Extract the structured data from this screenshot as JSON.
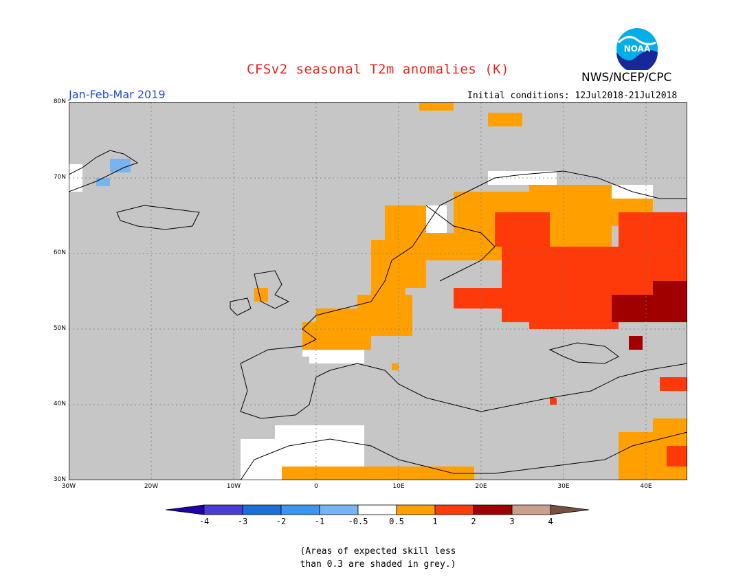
{
  "title": "CFSv2 seasonal T2m anomalies (K)",
  "agency": "NWS/NCEP/CPC",
  "period": "Jan-Feb-Mar 2019",
  "initial_conditions": "Initial conditions: 12Jul2018-21Jul2018",
  "logo_text": "NOAA",
  "footnote_line1": "(Areas of expected skill less",
  "footnote_line2": "than 0.3 are shaded in grey.)",
  "map": {
    "projection": "lat-lon",
    "lon_range": [
      -30,
      45
    ],
    "lat_range": [
      30,
      80
    ],
    "gridlines": "dotted",
    "lat_labels": [
      "80N",
      "70N",
      "60N",
      "50N",
      "40N",
      "30N"
    ],
    "lon_labels": [
      "30W",
      "20W",
      "10W",
      "0",
      "10E",
      "20E",
      "30E",
      "40E"
    ],
    "no_skill_color": "#c6c6c6",
    "anomaly_regions": [
      {
        "region": "European Russia / Baltic",
        "category": "1 to 2 K",
        "color": "#ff3a0a"
      },
      {
        "region": "Southwest Russia / Kazakhstan border",
        "category": "2 to 3 K",
        "color": "#a00000"
      },
      {
        "region": "Finland / Scandinavia / Northwest Russia",
        "category": "0.5 to 1 K",
        "color": "#ffa000"
      },
      {
        "region": "France / Benelux / Germany",
        "category": "0.5 to 1 K",
        "color": "#ffa000"
      },
      {
        "region": "Middle East / Levant",
        "category": "0.5 to 2 K",
        "color": "#ffa000"
      },
      {
        "region": "North Africa / Sahara",
        "category": "-0.5 to 0.5 K",
        "color": "#ffffff"
      },
      {
        "region": "Greenland coast",
        "category": "-1 to -0.5 K",
        "color": "#78b4f0"
      }
    ]
  },
  "colorbar": {
    "labels": [
      "-4",
      "-3",
      "-2",
      "-1",
      "-0.5",
      "0.5",
      "1",
      "2",
      "3",
      "4"
    ],
    "colors": [
      "#1e00a8",
      "#4a3cd6",
      "#1e6ed8",
      "#3c96f0",
      "#78b4f0",
      "#ffffff",
      "#ffa000",
      "#ff3a0a",
      "#a00000",
      "#c8a08c",
      "#785040"
    ]
  }
}
